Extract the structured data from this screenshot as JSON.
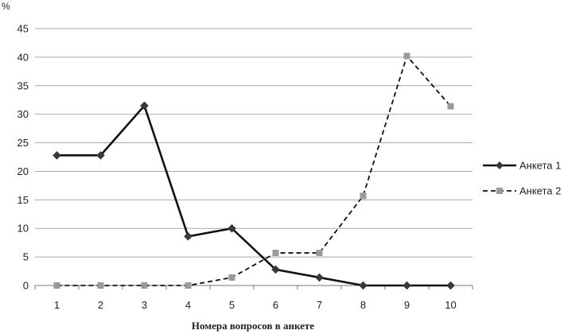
{
  "chart_data": {
    "type": "line",
    "ylabel": "%",
    "xlabel": "Номера вопросов в анкете",
    "ylim": [
      0,
      45
    ],
    "yticks": [
      0,
      5,
      10,
      15,
      20,
      25,
      30,
      35,
      40,
      45
    ],
    "categories": [
      "1",
      "2",
      "3",
      "4",
      "5",
      "6",
      "7",
      "8",
      "9",
      "10"
    ],
    "grid": "horizontal",
    "legend": "right",
    "series": [
      {
        "name": "Анкета 1",
        "values": [
          22.8,
          22.8,
          31.5,
          8.6,
          10.0,
          2.8,
          1.4,
          0,
          0,
          0
        ],
        "color": "#111111",
        "line_style": "solid",
        "marker": "diamond"
      },
      {
        "name": "Анкета 2",
        "values": [
          0,
          0,
          0,
          0,
          1.4,
          5.7,
          5.7,
          15.7,
          40.2,
          31.4
        ],
        "color": "#111111",
        "marker_color": "#9a9a9a",
        "line_style": "dashed",
        "marker": "square"
      }
    ]
  }
}
